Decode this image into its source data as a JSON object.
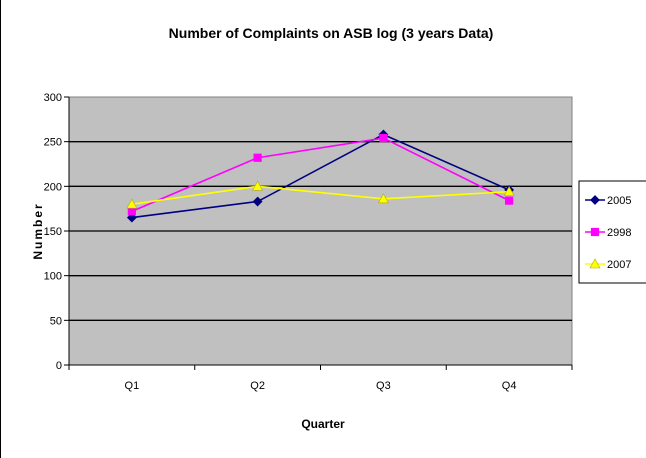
{
  "chart_data": {
    "type": "line",
    "title": "Number of Complaints on ASB log (3 years Data)",
    "xlabel": "Quarter",
    "ylabel": "Number",
    "categories": [
      "Q1",
      "Q2",
      "Q3",
      "Q4"
    ],
    "ylim": [
      0,
      300
    ],
    "yticks": [
      0,
      50,
      100,
      150,
      200,
      250,
      300
    ],
    "grid": true,
    "legend_position": "right",
    "plot_background": "#c0c0c0",
    "series": [
      {
        "name": "2005",
        "values": [
          165,
          183,
          258,
          196
        ],
        "color": "#000080",
        "marker": "diamond"
      },
      {
        "name": "2998",
        "values": [
          172,
          232,
          254,
          184
        ],
        "color": "#ff00ff",
        "marker": "square"
      },
      {
        "name": "2007",
        "values": [
          180,
          200,
          186,
          194
        ],
        "color": "#ffff00",
        "marker": "triangle"
      }
    ]
  }
}
